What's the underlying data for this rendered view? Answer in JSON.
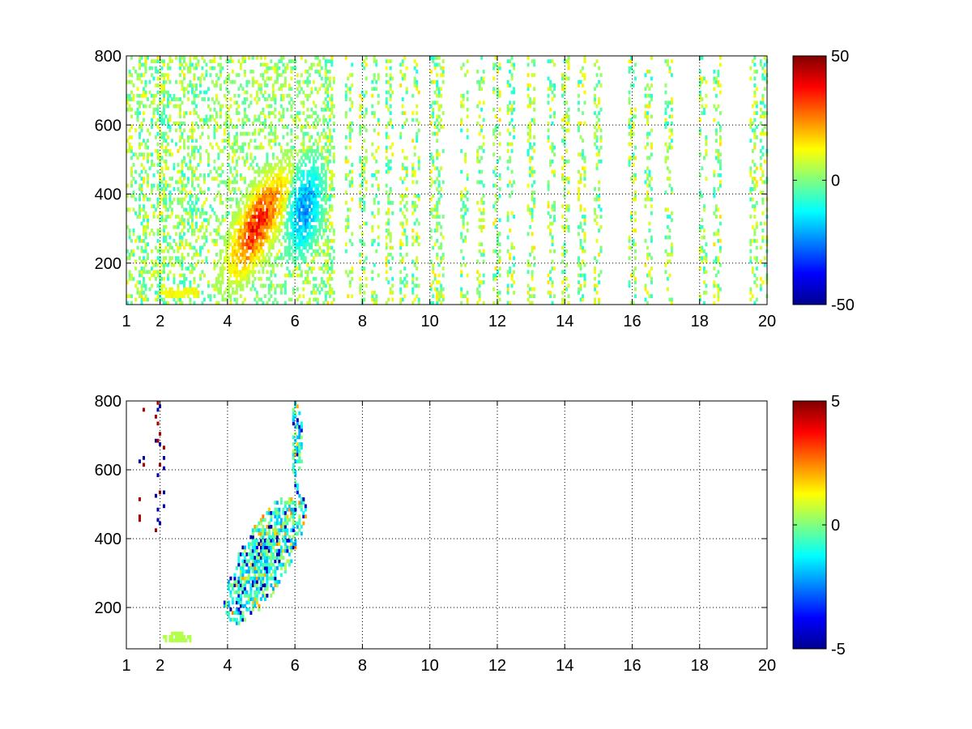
{
  "chart_data": [
    {
      "type": "heatmap",
      "colormap": "jet",
      "xlim": [
        1,
        20
      ],
      "ylim": [
        80,
        800
      ],
      "xticks": [
        1,
        2,
        4,
        6,
        8,
        10,
        12,
        14,
        16,
        18,
        20
      ],
      "xtick_labels": [
        "1",
        "2",
        "4",
        "6",
        "8",
        "10",
        "12",
        "14",
        "16",
        "18",
        "20"
      ],
      "yticks": [
        200,
        400,
        600,
        800
      ],
      "ytick_labels": [
        "200",
        "400",
        "600",
        "800"
      ],
      "grid": true,
      "colorbar": {
        "range": [
          -50,
          50
        ],
        "tick_labels": [
          "50",
          "0",
          "-50"
        ],
        "tick_values": [
          50,
          0,
          -50
        ]
      },
      "features": {
        "positive_band": {
          "x_range": [
            3.6,
            6.0
          ],
          "y_range": [
            150,
            450
          ],
          "peak_value": 45
        },
        "negative_band": {
          "x_range": [
            5.6,
            7.0
          ],
          "y_range": [
            230,
            560
          ],
          "peak_value": -30
        },
        "low_ridge": {
          "x_range": [
            1.8,
            3.4
          ],
          "y_range": [
            90,
            140
          ],
          "value": 15
        },
        "scattered_columns": [
          1.5,
          2.0,
          2.2,
          2.6,
          3.0,
          7.0,
          7.6,
          8.0,
          8.4,
          8.8,
          9.2,
          9.6,
          10.1,
          10.3,
          11.0,
          11.5,
          12.0,
          12.4,
          13.0,
          13.6,
          14.0,
          14.5,
          15.0,
          16.0,
          16.5,
          17.1,
          18.1,
          18.5,
          19.6,
          19.9
        ]
      }
    },
    {
      "type": "heatmap",
      "colormap": "jet",
      "xlim": [
        1,
        20
      ],
      "ylim": [
        80,
        800
      ],
      "xticks": [
        1,
        2,
        4,
        6,
        8,
        10,
        12,
        14,
        16,
        18,
        20
      ],
      "xtick_labels": [
        "1",
        "2",
        "4",
        "6",
        "8",
        "10",
        "12",
        "14",
        "16",
        "18",
        "20"
      ],
      "yticks": [
        200,
        400,
        600,
        800
      ],
      "ytick_labels": [
        "200",
        "400",
        "600",
        "800"
      ],
      "grid": true,
      "colorbar": {
        "range": [
          -5,
          5
        ],
        "tick_labels": [
          "5",
          "0",
          "-5"
        ],
        "tick_values": [
          5,
          0,
          -5
        ]
      },
      "features": {
        "main_cluster": {
          "x_range": [
            3.6,
            7.0
          ],
          "y_range": [
            160,
            600
          ],
          "value_range": [
            -5,
            2
          ]
        },
        "upper_streak": {
          "x_range": [
            5.9,
            6.2
          ],
          "y_range": [
            560,
            800
          ],
          "value_range": [
            -3,
            1
          ]
        },
        "low_ridge": {
          "x_range": [
            2.0,
            3.0
          ],
          "y_range": [
            95,
            130
          ],
          "value": 0.5
        },
        "edge_streaks": [
          1.4,
          1.5,
          1.9,
          2.0,
          2.1
        ]
      }
    }
  ]
}
